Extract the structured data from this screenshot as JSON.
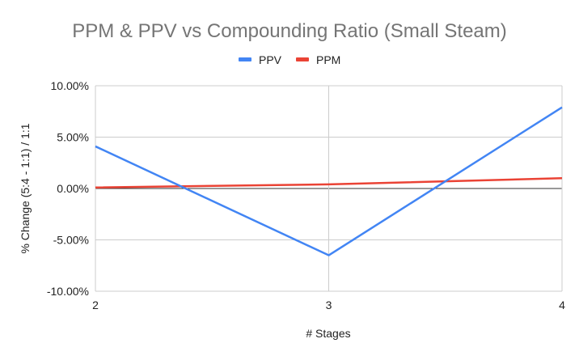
{
  "chart_data": {
    "type": "line",
    "title": "PPM & PPV vs Compounding Ratio (Small Steam)",
    "xlabel": "# Stages",
    "ylabel": "% Change (5:4 - 1:1) / 1:1",
    "x": [
      2,
      3,
      4
    ],
    "x_tick_labels": [
      "2",
      "3",
      "4"
    ],
    "xlim": [
      2,
      4
    ],
    "ylim": [
      -10,
      10
    ],
    "y_ticks": [
      10,
      5,
      0,
      -5,
      -10
    ],
    "y_tick_labels": [
      "10.00%",
      "5.00%",
      "0.00%",
      "-5.00%",
      "-10.00%"
    ],
    "grid": true,
    "legend_position": "top",
    "series": [
      {
        "name": "PPV",
        "color": "#4285f4",
        "values": [
          4.1,
          -6.5,
          7.9
        ]
      },
      {
        "name": "PPM",
        "color": "#ea4335",
        "values": [
          0.1,
          0.4,
          1.0
        ]
      }
    ]
  }
}
